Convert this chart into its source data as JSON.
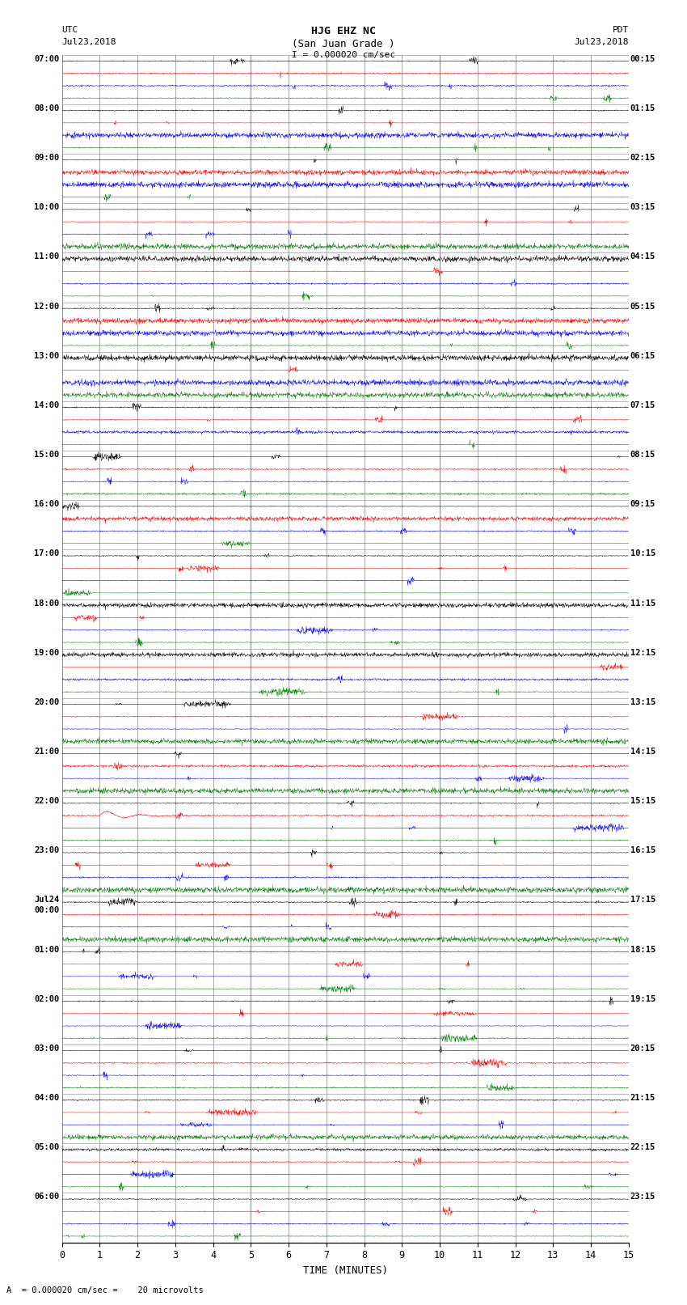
{
  "title_line1": "HJG EHZ NC",
  "title_line2": "(San Juan Grade )",
  "scale_label": "I = 0.000020 cm/sec",
  "bottom_label": "A  = 0.000020 cm/sec =    20 microvolts",
  "utc_label": "UTC",
  "utc_date": "Jul23,2018",
  "pdt_label": "PDT",
  "pdt_date": "Jul23,2018",
  "xlabel": "TIME (MINUTES)",
  "left_times": [
    "07:00",
    "08:00",
    "09:00",
    "10:00",
    "11:00",
    "12:00",
    "13:00",
    "14:00",
    "15:00",
    "16:00",
    "17:00",
    "18:00",
    "19:00",
    "20:00",
    "21:00",
    "22:00",
    "23:00",
    "Jul24",
    "01:00",
    "02:00",
    "03:00",
    "04:00",
    "05:00",
    "06:00"
  ],
  "left_times_sub": [
    "",
    "",
    "",
    "",
    "",
    "",
    "",
    "",
    "",
    "",
    "",
    "",
    "",
    "",
    "",
    "",
    "",
    "00:00",
    "",
    "",
    "",
    "",
    "",
    ""
  ],
  "right_times": [
    "00:15",
    "01:15",
    "02:15",
    "03:15",
    "04:15",
    "05:15",
    "06:15",
    "07:15",
    "08:15",
    "09:15",
    "10:15",
    "11:15",
    "12:15",
    "13:15",
    "14:15",
    "15:15",
    "16:15",
    "17:15",
    "18:15",
    "19:15",
    "20:15",
    "21:15",
    "22:15",
    "23:15"
  ],
  "n_rows": 24,
  "n_traces_per_row": 4,
  "trace_colors": [
    "black",
    "red",
    "blue",
    "green"
  ],
  "background_color": "white",
  "grid_color": "#888888",
  "figsize": [
    8.5,
    16.13
  ],
  "dpi": 100
}
